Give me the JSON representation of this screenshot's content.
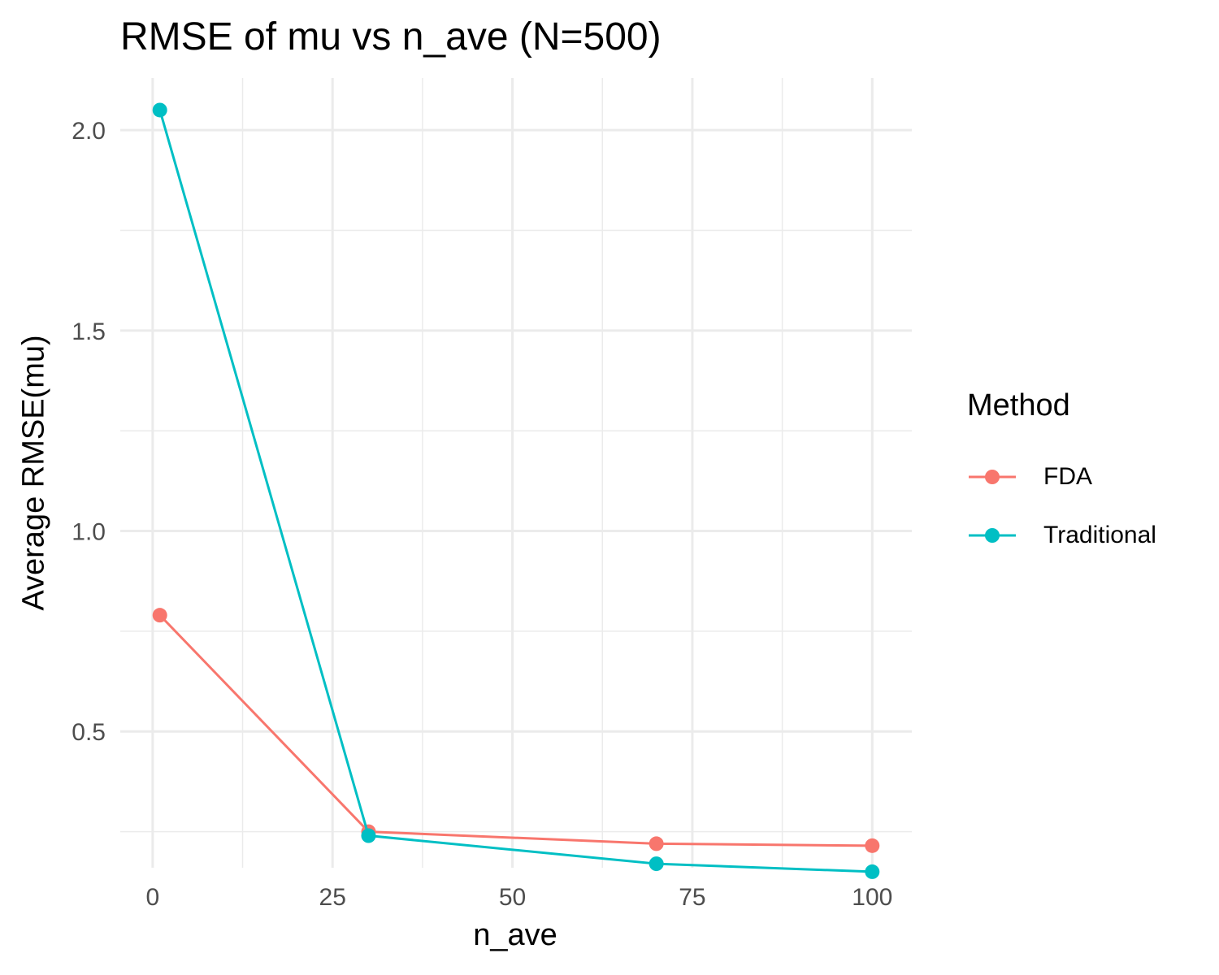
{
  "chart_data": {
    "type": "line",
    "title": "RMSE of mu vs n_ave (N=500)",
    "xlabel": "n_ave",
    "ylabel": "Average RMSE(mu)",
    "x": [
      1,
      30,
      70,
      100
    ],
    "xticks": [
      0,
      25,
      50,
      75,
      100
    ],
    "xtick_labels": [
      "0",
      "25",
      "50",
      "75",
      "100"
    ],
    "yticks": [
      0.5,
      1.0,
      1.5,
      2.0
    ],
    "ytick_labels": [
      "0.5",
      "1.0",
      "1.5",
      "2.0"
    ],
    "xlim": [
      -4.5,
      105.5
    ],
    "ylim": [
      0.16,
      2.13
    ],
    "grid": true,
    "legend_title": "Method",
    "legend_position": "right",
    "series": [
      {
        "name": "FDA",
        "color": "#F8766D",
        "values": [
          0.79,
          0.25,
          0.22,
          0.215
        ]
      },
      {
        "name": "Traditional",
        "color": "#00BFC4",
        "values": [
          2.05,
          0.24,
          0.17,
          0.15
        ]
      }
    ]
  }
}
